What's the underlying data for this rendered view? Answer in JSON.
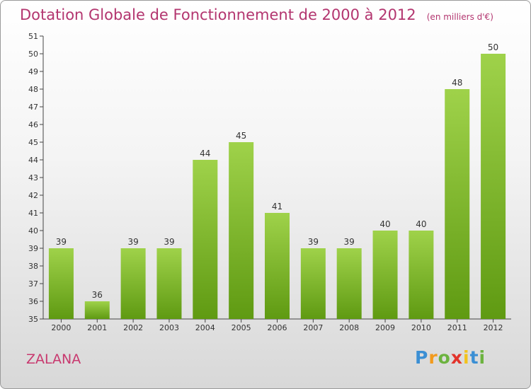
{
  "chart_data": {
    "type": "bar",
    "title": "Dotation Globale de Fonctionnement de 2000 à 2012",
    "unit": "(en milliers d'€)",
    "categories": [
      "2000",
      "2001",
      "2002",
      "2003",
      "2004",
      "2005",
      "2006",
      "2007",
      "2008",
      "2009",
      "2010",
      "2011",
      "2012"
    ],
    "values": [
      39,
      36,
      39,
      39,
      44,
      45,
      41,
      39,
      39,
      40,
      40,
      48,
      50
    ],
    "ylim": [
      35,
      51
    ],
    "yticks": [
      35,
      36,
      37,
      38,
      39,
      40,
      41,
      42,
      43,
      44,
      45,
      46,
      47,
      48,
      49,
      50,
      51
    ],
    "grid": false,
    "bar_color": "#7fbf2a",
    "xlabel": "",
    "ylabel": ""
  },
  "place": "ZALANA",
  "logo": {
    "letters": [
      "P",
      "r",
      "o",
      "x",
      "i",
      "t",
      "i"
    ],
    "colors": [
      "#3b8fd4",
      "#f29a1d",
      "#6cb33f",
      "#e2332b",
      "#f2c31d",
      "#3b8fd4",
      "#6cb33f"
    ]
  }
}
